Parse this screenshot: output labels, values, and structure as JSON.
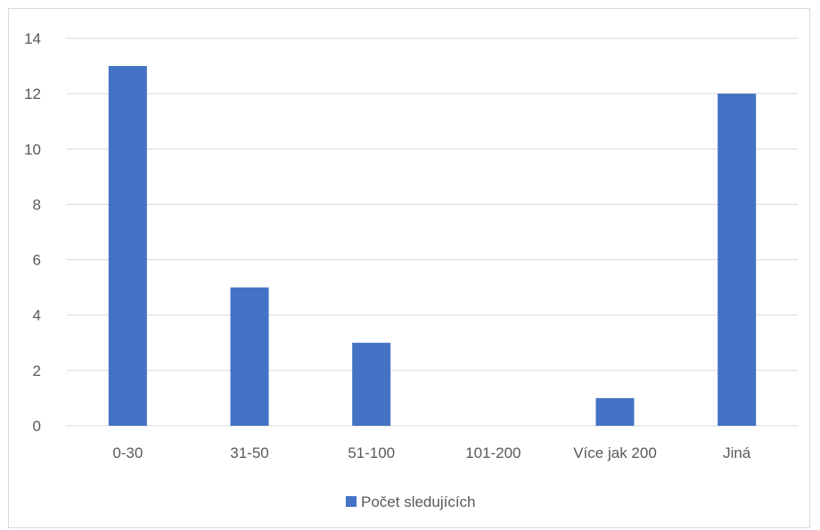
{
  "chart_data": {
    "type": "bar",
    "categories": [
      "0-30",
      "31-50",
      "51-100",
      "101-200",
      "Více jak 200",
      "Jiná"
    ],
    "series": [
      {
        "name": "Počet sledujících",
        "values": [
          13,
          5,
          3,
          0,
          1,
          12
        ]
      }
    ],
    "ylim": [
      0,
      14
    ],
    "yticks": [
      0,
      2,
      4,
      6,
      8,
      10,
      12,
      14
    ],
    "grid": true,
    "legend": "bottom",
    "colors": {
      "bar": "#4472C4",
      "grid": "#d9d9d9",
      "text": "#595959"
    }
  }
}
